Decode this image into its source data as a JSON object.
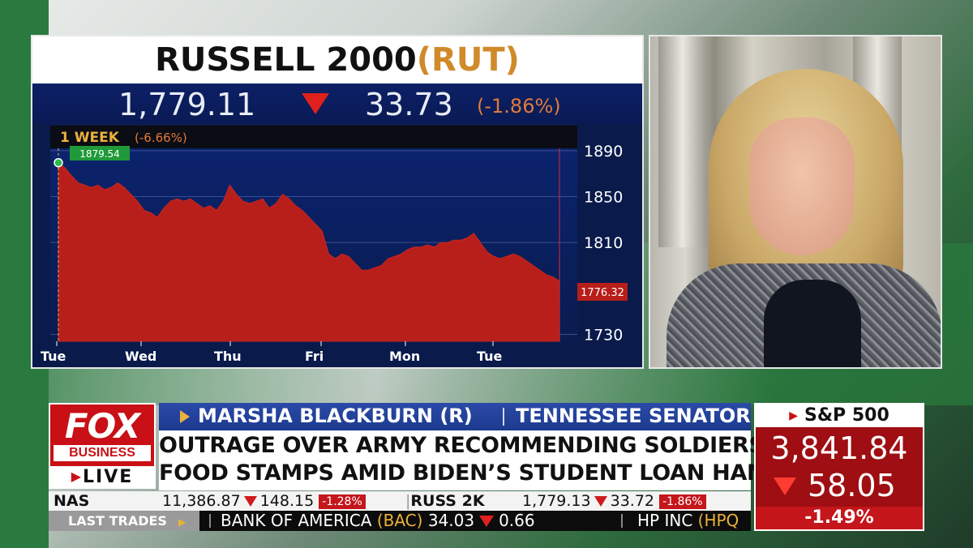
{
  "chart_panel": {
    "title": "RUSSELL 2000",
    "symbol": "(RUT)",
    "price": "1,779.11",
    "change": "33.73",
    "change_pct": "(-1.86%)",
    "period_label": "1 WEEK",
    "period_pct": "(-6.66%)",
    "high_label": "1879.54",
    "last_label": "1776.32",
    "arrow_color": "#e0201c"
  },
  "chart_data": {
    "type": "area",
    "x_labels": [
      "Tue",
      "Wed",
      "Thu",
      "Fri",
      "Mon",
      "Tue"
    ],
    "y_ticks": [
      1890,
      1850,
      1810,
      1730
    ],
    "ylim": [
      1724,
      1892
    ],
    "values": [
      1879.5,
      1875,
      1868,
      1862,
      1860,
      1858,
      1860,
      1856,
      1858,
      1862,
      1858,
      1852,
      1846,
      1838,
      1836,
      1832,
      1840,
      1846,
      1848,
      1846,
      1848,
      1844,
      1840,
      1842,
      1838,
      1846,
      1860,
      1852,
      1846,
      1844,
      1846,
      1848,
      1840,
      1844,
      1852,
      1848,
      1842,
      1838,
      1832,
      1826,
      1820,
      1800,
      1796,
      1800,
      1798,
      1792,
      1786,
      1786,
      1788,
      1790,
      1796,
      1798,
      1800,
      1804,
      1806,
      1806,
      1808,
      1806,
      1810,
      1810,
      1812,
      1812,
      1814,
      1818,
      1810,
      1802,
      1798,
      1796,
      1798,
      1800,
      1798,
      1794,
      1790,
      1786,
      1782,
      1780,
      1776.3
    ],
    "series_color": "#b81e1a"
  },
  "lower_third": {
    "logo_main": "FOX",
    "logo_sub": "BUSINESS",
    "logo_live": "LIVE",
    "guest_name": "MARSHA BLACKBURN (R)",
    "guest_title": "TENNESSEE SENATOR",
    "headline_line1": "OUTRAGE OVER ARMY RECOMMENDING SOLDIERS GO ON",
    "headline_line2": "FOOD STAMPS AMID BIDEN’S STUDENT LOAN HANDOUT"
  },
  "sp500": {
    "label": "S&P 500",
    "value": "3,841.84",
    "change": "58.05",
    "change_pct": "-1.49%"
  },
  "ticker1": [
    {
      "symbol": "NAS",
      "value": "11,386.87",
      "change": "148.15",
      "pct": "-1.28%"
    },
    {
      "symbol": "RUSS 2K",
      "value": "1,779.13",
      "change": "33.72",
      "pct": "-1.86%"
    }
  ],
  "ticker2": {
    "label": "LAST TRADES",
    "items": [
      {
        "name": "BANK OF AMERICA",
        "symbol": "(BAC)",
        "value": "34.03",
        "change": "0.66"
      },
      {
        "name": "HP INC",
        "symbol": "(HPQ"
      }
    ]
  }
}
